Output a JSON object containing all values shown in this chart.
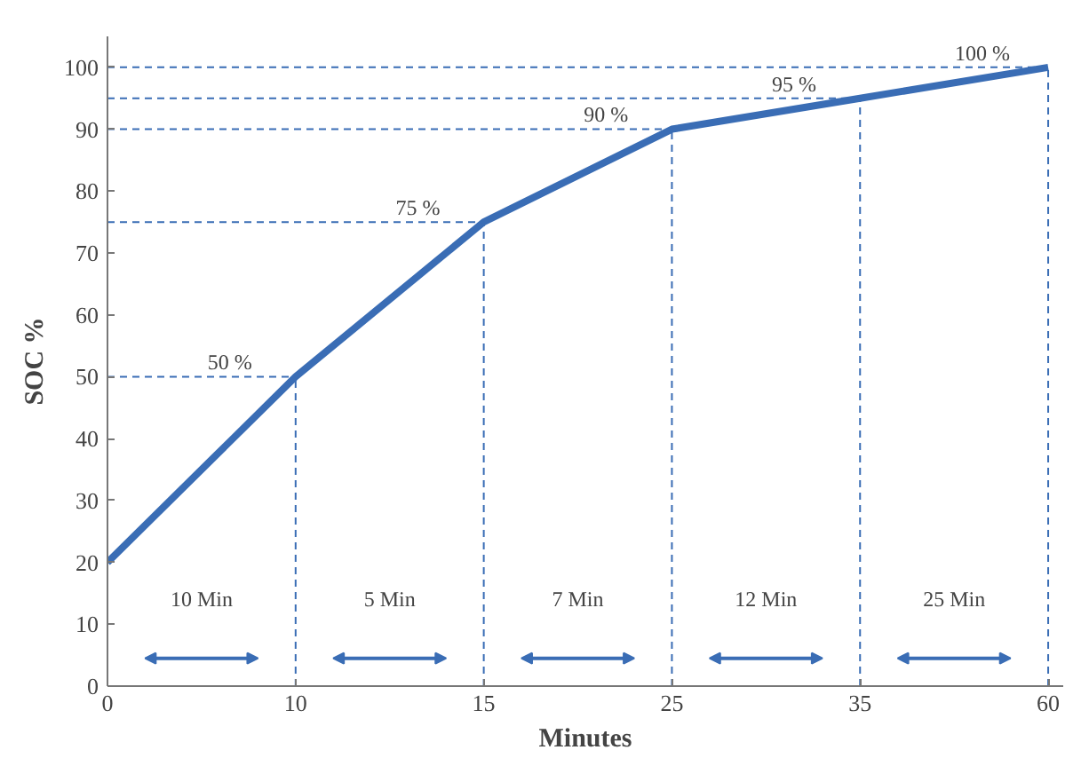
{
  "chart_data": {
    "type": "line",
    "xlabel": "Minutes",
    "ylabel": "SOC %",
    "categories": [
      "0",
      "10",
      "15",
      "25",
      "35",
      "60"
    ],
    "series": [
      {
        "color": "#3a6db5",
        "values": [
          20,
          50,
          75,
          90,
          95,
          100
        ]
      }
    ],
    "ylim": [
      0,
      105
    ],
    "yticks": [
      0,
      10,
      20,
      30,
      40,
      50,
      60,
      70,
      80,
      90,
      100
    ],
    "grid": false,
    "marker": "none",
    "line_style": "solid",
    "ref_lines": [
      {
        "axis": "y",
        "value": 50,
        "color": "#3a6db5",
        "line_style": "dashed"
      },
      {
        "axis": "y",
        "value": 75,
        "color": "#3a6db5",
        "line_style": "dashed"
      },
      {
        "axis": "y",
        "value": 90,
        "color": "#3a6db5",
        "line_style": "dashed"
      },
      {
        "axis": "y",
        "value": 95,
        "color": "#3a6db5",
        "line_style": "dashed"
      },
      {
        "axis": "y",
        "value": 100,
        "color": "#3a6db5",
        "line_style": "dashed"
      },
      {
        "axis": "x",
        "value": "10",
        "color": "#3a6db5",
        "line_style": "dashed"
      },
      {
        "axis": "x",
        "value": "15",
        "color": "#3a6db5",
        "line_style": "dashed"
      },
      {
        "axis": "x",
        "value": "25",
        "color": "#3a6db5",
        "line_style": "dashed"
      },
      {
        "axis": "x",
        "value": "35",
        "color": "#3a6db5",
        "line_style": "dashed"
      },
      {
        "axis": "x",
        "value": "60",
        "color": "#3a6db5",
        "line_style": "dashed"
      }
    ],
    "annotations": [
      {
        "text": "50 %",
        "x": "10",
        "y": 50
      },
      {
        "text": "75 %",
        "x": "15",
        "y": 75
      },
      {
        "text": "90 %",
        "x": "25",
        "y": 90
      },
      {
        "text": "95 %",
        "x": "35",
        "y": 95
      },
      {
        "text": "100 %",
        "x": "60",
        "y": 100
      },
      "10 Min",
      "5 Min",
      "7 Min",
      "12 Min",
      "25 Min"
    ]
  }
}
